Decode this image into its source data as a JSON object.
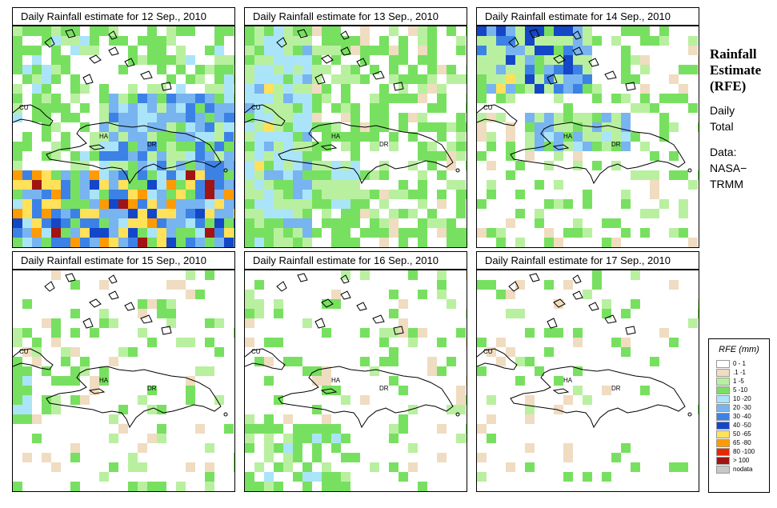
{
  "panels": [
    {
      "title": "Daily Rainfall estimate for  12 Sep., 2010",
      "date": "2010-09-12",
      "intensity": "heavy"
    },
    {
      "title": "Daily Rainfall estimate for  13 Sep., 2010",
      "date": "2010-09-13",
      "intensity": "moderate"
    },
    {
      "title": "Daily Rainfall estimate for  14 Sep., 2010",
      "date": "2010-09-14",
      "intensity": "scattered"
    },
    {
      "title": "Daily Rainfall estimate for  15 Sep., 2010",
      "date": "2010-09-15",
      "intensity": "light"
    },
    {
      "title": "Daily Rainfall estimate for  16 Sep., 2010",
      "date": "2010-09-16",
      "intensity": "light-south"
    },
    {
      "title": "Daily Rainfall estimate for  17 Sep., 2010",
      "date": "2010-09-17",
      "intensity": "sparse"
    }
  ],
  "map_labels": {
    "cuba": "CU",
    "haiti": "HA",
    "dominican_republic": "DR"
  },
  "side_panel": {
    "heading_1": "Rainfall",
    "heading_2": "Estimate",
    "heading_3": "(RFE)",
    "line_1": "Daily",
    "line_2": "Total",
    "line_3": "Data:",
    "line_4": "NASA−",
    "line_5": "TRMM"
  },
  "legend": {
    "title": "RFE (mm)",
    "items": [
      {
        "label": "0 - 1",
        "color": "#ffffff"
      },
      {
        "label": ".1 -1",
        "color": "#f0dcc0"
      },
      {
        "label": "1 -5",
        "color": "#b9f0a0"
      },
      {
        "label": "5 -10",
        "color": "#78e060"
      },
      {
        "label": "10 -20",
        "color": "#aae4f8"
      },
      {
        "label": "20 -30",
        "color": "#78b4f0"
      },
      {
        "label": "30 -40",
        "color": "#3c82e6"
      },
      {
        "label": "40 -50",
        "color": "#1446c8"
      },
      {
        "label": "50 -65",
        "color": "#ffe15a"
      },
      {
        "label": "65 -80",
        "color": "#ff9b00"
      },
      {
        "label": "80 -100",
        "color": "#e62800"
      },
      {
        "label": "> 100",
        "color": "#a01414"
      },
      {
        "label": "nodata",
        "color": "#c8c8c8"
      }
    ]
  }
}
